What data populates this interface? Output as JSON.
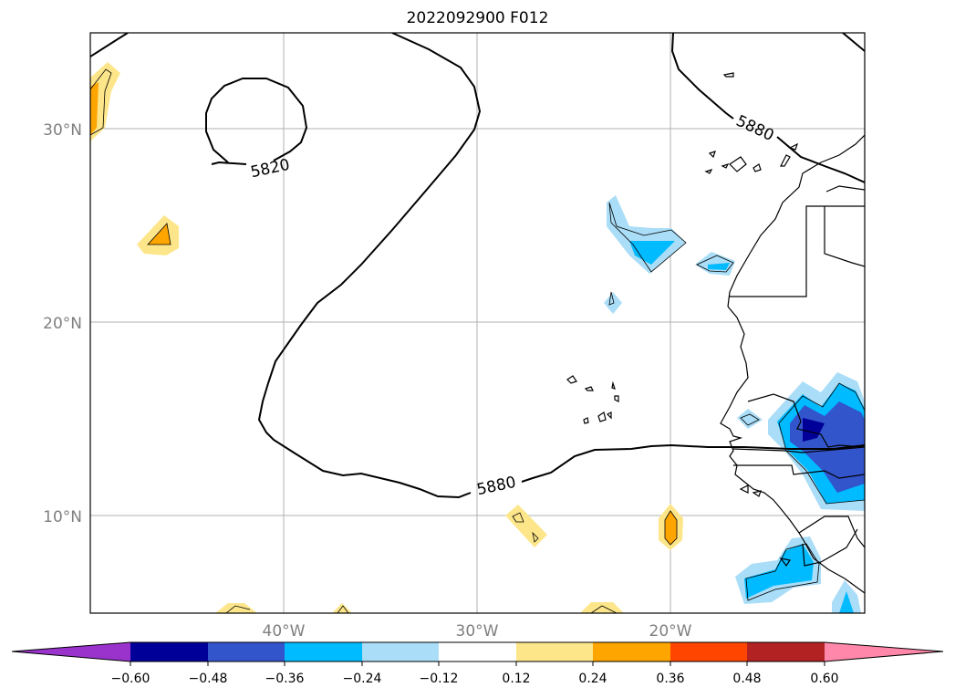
{
  "title": "2022092900 F012",
  "latitude_labels": [
    "30°N",
    "20°N",
    "10°N"
  ],
  "longitude_labels": [
    "40°W",
    "30°W",
    "20°W"
  ],
  "contour_labels": [
    "5820",
    "5880",
    "5880"
  ],
  "colorbar": {
    "ticks": [
      "−0.60",
      "−0.48",
      "−0.36",
      "−0.24",
      "−0.12",
      "0.12",
      "0.24",
      "0.36",
      "0.48",
      "0.60"
    ],
    "colors": [
      "#9933cc",
      "#000099",
      "#3355cc",
      "#00bbff",
      "#aaddf7",
      "#ffffff",
      "#fde68a",
      "#ffa500",
      "#ff4500",
      "#b22222",
      "#ff88aa"
    ]
  }
}
